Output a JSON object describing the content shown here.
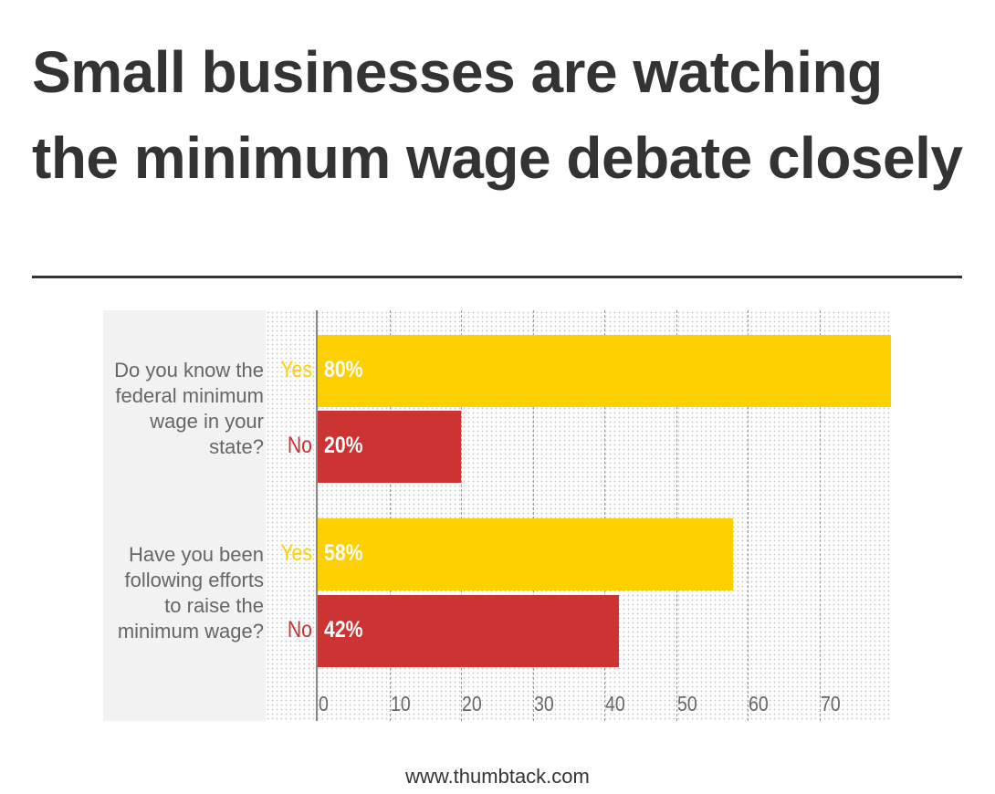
{
  "title": "Small businesses are watching the minimum wage debate closely",
  "footer": "www.thumbtack.com",
  "colors": {
    "yes": "#FFD000",
    "no": "#CC3333"
  },
  "chart_data": {
    "type": "bar",
    "orientation": "horizontal",
    "title": "Small businesses are watching the minimum wage debate closely",
    "categories": [
      "Do you know the federal minimum wage in your state?",
      "Have you been following efforts to raise the minimum wage?"
    ],
    "series": [
      {
        "name": "Yes",
        "values": [
          80,
          58
        ],
        "labels": [
          "80%",
          "58%"
        ]
      },
      {
        "name": "No",
        "values": [
          20,
          42
        ],
        "labels": [
          "20%",
          "42%"
        ]
      }
    ],
    "xlim": [
      0,
      80
    ],
    "xticks": [
      "0",
      "10",
      "20",
      "30",
      "40",
      "50",
      "60",
      "70"
    ],
    "grid": true
  }
}
